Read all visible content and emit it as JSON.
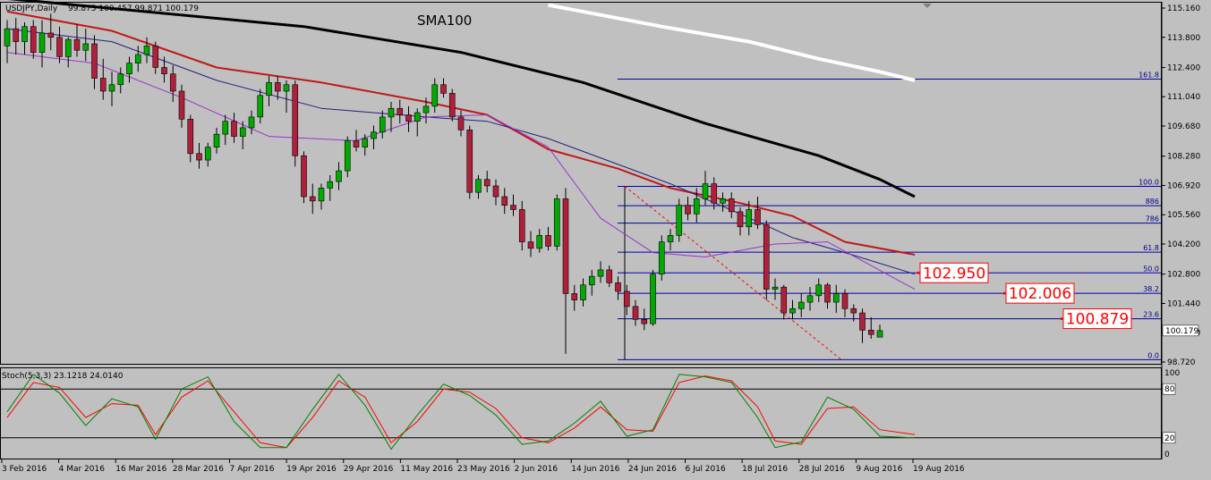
{
  "window": {
    "symbol_label": "USDJPY,Daily",
    "ohlc_readout": "99.875 100.457 99.871 100.179"
  },
  "annotation": {
    "sma_label": "SMA100"
  },
  "stoch": {
    "label": "Stoch(5,3,3) 23.1218 24.0140",
    "levels": [
      {
        "value": 80,
        "label": "80"
      },
      {
        "value": 20,
        "label": "20"
      }
    ],
    "scale_ticks": [
      "100",
      "0"
    ]
  },
  "colors": {
    "background": "#c0c0c0",
    "bull_candle": "#00aa00",
    "bear_candle": "#b0203a",
    "sma_black": "#000000",
    "sma_white": "#ffffff",
    "ma_red": "#c01818",
    "ma_blue": "#202080",
    "ma_purple": "#9a33cc",
    "fib": "#0000aa",
    "price_box": "#ff0000",
    "stoch_main": "#008000",
    "stoch_signal": "#ff0000"
  },
  "chart_data": {
    "type": "candlestick",
    "title": "USDJPY,Daily",
    "y_axis": {
      "ticks": [
        "115.160",
        "113.800",
        "112.400",
        "111.040",
        "109.680",
        "108.280",
        "106.920",
        "105.560",
        "104.200",
        "102.800",
        "101.440",
        "100.080",
        "98.720"
      ],
      "range": [
        98.5,
        115.5
      ]
    },
    "x_axis": {
      "tick_labels": [
        "3 Feb 2016",
        "4 Mar 2016",
        "16 Mar 2016",
        "28 Mar 2016",
        "7 Apr 2016",
        "19 Apr 2016",
        "29 Apr 2016",
        "11 May 2016",
        "23 May 2016",
        "2 Jun 2016",
        "14 Jun 2016",
        "24 Jun 2016",
        "6 Jul 2016",
        "18 Jul 2016",
        "28 Jul 2016",
        "9 Aug 2016",
        "19 Aug 2016"
      ]
    },
    "current_price": "100.179",
    "candles": [
      [
        113.4,
        114.6,
        112.6,
        114.2
      ],
      [
        114.2,
        114.7,
        113.0,
        113.6
      ],
      [
        113.6,
        114.5,
        113.0,
        114.3
      ],
      [
        114.3,
        114.6,
        112.8,
        113.1
      ],
      [
        113.1,
        114.6,
        112.4,
        114.0
      ],
      [
        114.0,
        114.9,
        113.2,
        113.8
      ],
      [
        113.8,
        114.3,
        112.6,
        112.9
      ],
      [
        112.9,
        113.8,
        112.4,
        113.7
      ],
      [
        113.7,
        114.4,
        112.9,
        113.2
      ],
      [
        113.2,
        114.2,
        112.7,
        113.5
      ],
      [
        113.5,
        113.9,
        111.4,
        111.9
      ],
      [
        111.9,
        112.8,
        110.9,
        111.3
      ],
      [
        111.3,
        112.2,
        110.6,
        111.6
      ],
      [
        111.6,
        112.4,
        111.2,
        112.1
      ],
      [
        112.1,
        112.9,
        111.7,
        112.6
      ],
      [
        112.6,
        113.4,
        112.2,
        113.0
      ],
      [
        113.0,
        113.8,
        112.6,
        113.4
      ],
      [
        113.4,
        113.6,
        112.1,
        112.4
      ],
      [
        112.4,
        112.9,
        111.7,
        112.1
      ],
      [
        112.1,
        112.5,
        110.8,
        111.3
      ],
      [
        111.3,
        111.6,
        109.6,
        110.0
      ],
      [
        110.0,
        110.2,
        108.0,
        108.4
      ],
      [
        108.4,
        108.9,
        107.7,
        108.1
      ],
      [
        108.1,
        108.9,
        107.8,
        108.7
      ],
      [
        108.7,
        109.6,
        108.4,
        109.3
      ],
      [
        109.3,
        110.2,
        108.8,
        109.9
      ],
      [
        109.9,
        110.3,
        108.9,
        109.2
      ],
      [
        109.2,
        109.9,
        108.6,
        109.6
      ],
      [
        109.6,
        110.4,
        109.3,
        110.1
      ],
      [
        110.1,
        111.4,
        109.8,
        111.1
      ],
      [
        111.1,
        112.0,
        110.6,
        111.7
      ],
      [
        111.7,
        112.0,
        110.9,
        111.3
      ],
      [
        111.3,
        111.8,
        110.3,
        111.6
      ],
      [
        111.6,
        111.8,
        107.8,
        108.3
      ],
      [
        108.3,
        108.5,
        106.1,
        106.4
      ],
      [
        106.4,
        107.0,
        105.6,
        106.2
      ],
      [
        106.2,
        107.0,
        105.8,
        106.8
      ],
      [
        106.8,
        107.4,
        106.2,
        107.1
      ],
      [
        107.1,
        108.0,
        106.7,
        107.6
      ],
      [
        107.6,
        109.2,
        107.3,
        109.0
      ],
      [
        109.0,
        109.5,
        108.5,
        108.7
      ],
      [
        108.7,
        109.3,
        108.3,
        109.1
      ],
      [
        109.1,
        109.7,
        108.6,
        109.4
      ],
      [
        109.4,
        110.4,
        109.1,
        110.1
      ],
      [
        110.1,
        110.8,
        109.4,
        110.5
      ],
      [
        110.5,
        110.9,
        109.8,
        110.2
      ],
      [
        110.2,
        110.6,
        109.4,
        109.9
      ],
      [
        109.9,
        110.5,
        109.2,
        110.3
      ],
      [
        110.3,
        111.0,
        109.8,
        110.6
      ],
      [
        110.6,
        111.9,
        110.3,
        111.6
      ],
      [
        111.6,
        111.9,
        111.0,
        111.2
      ],
      [
        111.2,
        111.4,
        109.9,
        110.1
      ],
      [
        110.1,
        110.4,
        109.2,
        109.5
      ],
      [
        109.5,
        109.7,
        106.3,
        106.6
      ],
      [
        106.6,
        107.4,
        106.3,
        107.2
      ],
      [
        107.2,
        107.6,
        106.6,
        106.9
      ],
      [
        106.9,
        107.2,
        106.0,
        106.4
      ],
      [
        106.4,
        106.8,
        105.6,
        106.0
      ],
      [
        106.0,
        106.5,
        105.5,
        105.8
      ],
      [
        105.8,
        106.2,
        103.9,
        104.3
      ],
      [
        104.3,
        104.8,
        103.6,
        104.0
      ],
      [
        104.0,
        104.9,
        103.8,
        104.6
      ],
      [
        104.6,
        105.0,
        103.9,
        104.1
      ],
      [
        104.1,
        106.5,
        103.9,
        106.3
      ],
      [
        106.3,
        106.8,
        99.1,
        101.9
      ],
      [
        101.9,
        102.3,
        101.1,
        101.6
      ],
      [
        101.6,
        102.6,
        101.3,
        102.3
      ],
      [
        102.3,
        103.0,
        101.8,
        102.7
      ],
      [
        102.7,
        103.4,
        102.4,
        103.0
      ],
      [
        103.0,
        103.2,
        102.2,
        102.4
      ],
      [
        102.4,
        102.7,
        101.6,
        102.0
      ],
      [
        102.0,
        102.3,
        100.9,
        101.3
      ],
      [
        101.3,
        101.6,
        100.4,
        100.7
      ],
      [
        100.7,
        101.2,
        100.2,
        100.5
      ],
      [
        100.5,
        103.0,
        100.4,
        102.8
      ],
      [
        102.8,
        104.6,
        102.5,
        104.3
      ],
      [
        104.3,
        104.9,
        103.9,
        104.6
      ],
      [
        104.6,
        106.3,
        104.3,
        106.0
      ],
      [
        106.0,
        106.4,
        105.3,
        105.6
      ],
      [
        105.6,
        106.8,
        105.2,
        106.3
      ],
      [
        106.3,
        107.6,
        106.0,
        107.0
      ],
      [
        107.0,
        107.3,
        105.8,
        106.1
      ],
      [
        106.1,
        106.6,
        105.7,
        106.3
      ],
      [
        106.3,
        106.6,
        105.4,
        105.7
      ],
      [
        105.7,
        105.9,
        104.6,
        105.0
      ],
      [
        105.0,
        106.2,
        104.6,
        105.8
      ],
      [
        105.8,
        106.4,
        104.9,
        105.1
      ],
      [
        105.1,
        105.3,
        101.6,
        102.1
      ],
      [
        102.1,
        102.6,
        101.6,
        102.2
      ],
      [
        102.2,
        102.3,
        100.7,
        101.0
      ],
      [
        101.0,
        101.6,
        100.7,
        101.2
      ],
      [
        101.2,
        101.9,
        100.8,
        101.5
      ],
      [
        101.5,
        102.2,
        101.1,
        101.8
      ],
      [
        101.8,
        102.6,
        101.5,
        102.3
      ],
      [
        102.3,
        102.4,
        101.2,
        101.5
      ],
      [
        101.5,
        102.3,
        101.0,
        101.9
      ],
      [
        101.9,
        102.1,
        100.8,
        101.2
      ],
      [
        101.2,
        101.4,
        100.6,
        101.0
      ],
      [
        101.0,
        101.2,
        99.6,
        100.2
      ],
      [
        100.2,
        100.8,
        99.8,
        100.0
      ],
      [
        99.875,
        100.457,
        99.871,
        100.179
      ]
    ],
    "sma100_black": [
      [
        0,
        115.6
      ],
      [
        34,
        114.3
      ],
      [
        52,
        113.1
      ],
      [
        66,
        111.7
      ],
      [
        80,
        109.8
      ],
      [
        93,
        108.3
      ],
      [
        100,
        107.2
      ],
      [
        104,
        106.4
      ]
    ],
    "long_ma_white": [
      [
        62,
        115.3
      ],
      [
        75,
        114.3
      ],
      [
        85,
        113.6
      ],
      [
        93,
        112.8
      ],
      [
        100,
        112.2
      ],
      [
        104,
        111.8
      ]
    ],
    "ma_red": [
      [
        0,
        115.0
      ],
      [
        12,
        114.1
      ],
      [
        24,
        112.4
      ],
      [
        36,
        111.7
      ],
      [
        48,
        110.8
      ],
      [
        55,
        110.2
      ],
      [
        62,
        108.6
      ],
      [
        70,
        107.7
      ],
      [
        76,
        106.8
      ],
      [
        84,
        106.1
      ],
      [
        90,
        105.5
      ],
      [
        96,
        104.3
      ],
      [
        104,
        103.7
      ]
    ],
    "ma_blue": [
      [
        0,
        114.2
      ],
      [
        12,
        113.6
      ],
      [
        24,
        111.8
      ],
      [
        36,
        110.5
      ],
      [
        48,
        110.1
      ],
      [
        55,
        109.9
      ],
      [
        62,
        109.1
      ],
      [
        70,
        107.9
      ],
      [
        76,
        107.0
      ],
      [
        84,
        105.6
      ],
      [
        90,
        104.5
      ],
      [
        96,
        103.8
      ],
      [
        104,
        102.8
      ]
    ],
    "ma_purple": [
      [
        0,
        113.1
      ],
      [
        10,
        112.6
      ],
      [
        20,
        111.0
      ],
      [
        30,
        109.2
      ],
      [
        40,
        109.0
      ],
      [
        48,
        110.1
      ],
      [
        55,
        110.2
      ],
      [
        62,
        108.7
      ],
      [
        68,
        105.4
      ],
      [
        74,
        103.8
      ],
      [
        80,
        103.6
      ],
      [
        88,
        104.2
      ],
      [
        94,
        104.3
      ],
      [
        104,
        102.1
      ]
    ],
    "fib_levels": [
      {
        "label": "161.8",
        "price": 111.86
      },
      {
        "label": "100.0",
        "price": 106.88
      },
      {
        "label": "886",
        "price": 105.98
      },
      {
        "label": "786",
        "price": 105.17
      },
      {
        "label": "61.8",
        "price": 103.82
      },
      {
        "label": "50.0",
        "price": 102.86
      },
      {
        "label": "38.2",
        "price": 101.91
      },
      {
        "label": "23.6",
        "price": 100.73
      },
      {
        "label": "0.0",
        "price": 98.83
      }
    ],
    "price_boxes": [
      {
        "label": "102.950",
        "price": 102.86
      },
      {
        "label": "102.006",
        "price": 101.91
      },
      {
        "label": "100.879",
        "price": 100.73
      }
    ],
    "stoch_k": [
      [
        0,
        52
      ],
      [
        3,
        98
      ],
      [
        6,
        75
      ],
      [
        9,
        35
      ],
      [
        12,
        68
      ],
      [
        15,
        58
      ],
      [
        17,
        18
      ],
      [
        20,
        80
      ],
      [
        23,
        95
      ],
      [
        26,
        40
      ],
      [
        29,
        8
      ],
      [
        32,
        8
      ],
      [
        35,
        55
      ],
      [
        38,
        98
      ],
      [
        41,
        60
      ],
      [
        44,
        6
      ],
      [
        47,
        48
      ],
      [
        50,
        86
      ],
      [
        53,
        72
      ],
      [
        56,
        48
      ],
      [
        59,
        12
      ],
      [
        62,
        16
      ],
      [
        65,
        38
      ],
      [
        68,
        65
      ],
      [
        71,
        22
      ],
      [
        74,
        30
      ],
      [
        77,
        98
      ],
      [
        80,
        95
      ],
      [
        83,
        88
      ],
      [
        86,
        45
      ],
      [
        88,
        8
      ],
      [
        91,
        15
      ],
      [
        94,
        70
      ],
      [
        97,
        55
      ],
      [
        100,
        22
      ],
      [
        104,
        20
      ]
    ],
    "stoch_d": [
      [
        0,
        45
      ],
      [
        3,
        88
      ],
      [
        6,
        82
      ],
      [
        9,
        45
      ],
      [
        12,
        62
      ],
      [
        15,
        60
      ],
      [
        17,
        24
      ],
      [
        20,
        70
      ],
      [
        23,
        90
      ],
      [
        26,
        52
      ],
      [
        29,
        14
      ],
      [
        32,
        8
      ],
      [
        35,
        45
      ],
      [
        38,
        90
      ],
      [
        41,
        70
      ],
      [
        44,
        14
      ],
      [
        47,
        40
      ],
      [
        50,
        80
      ],
      [
        53,
        76
      ],
      [
        56,
        56
      ],
      [
        59,
        20
      ],
      [
        62,
        14
      ],
      [
        65,
        32
      ],
      [
        68,
        58
      ],
      [
        71,
        30
      ],
      [
        74,
        28
      ],
      [
        77,
        88
      ],
      [
        80,
        96
      ],
      [
        83,
        90
      ],
      [
        86,
        58
      ],
      [
        88,
        16
      ],
      [
        91,
        12
      ],
      [
        94,
        56
      ],
      [
        97,
        58
      ],
      [
        100,
        30
      ],
      [
        104,
        24
      ]
    ]
  }
}
